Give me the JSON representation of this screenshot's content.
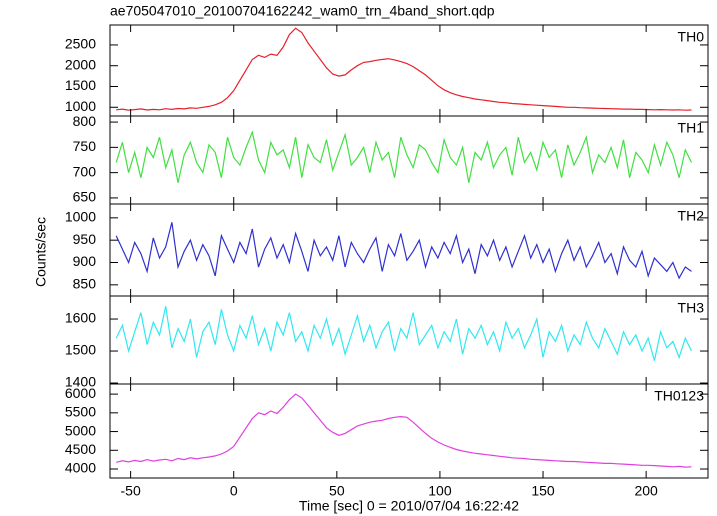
{
  "chart_data": {
    "type": "line",
    "title": "ae705047010_20100704162242_wam0_trn_4band_short.qdp",
    "xlabel": "Time [sec] 0 = 2010/07/04 16:22:42",
    "ylabel": "Counts/sec",
    "xlim": [
      -60,
      230
    ],
    "xticks": [
      -50,
      0,
      50,
      100,
      150,
      200
    ],
    "x": [
      -57,
      -54,
      -51,
      -48,
      -45,
      -42,
      -39,
      -36,
      -33,
      -30,
      -27,
      -24,
      -21,
      -18,
      -15,
      -12,
      -9,
      -6,
      -3,
      0,
      3,
      6,
      9,
      12,
      15,
      18,
      21,
      24,
      27,
      30,
      33,
      36,
      39,
      42,
      45,
      48,
      51,
      54,
      57,
      60,
      63,
      66,
      69,
      72,
      75,
      78,
      81,
      84,
      87,
      90,
      93,
      96,
      99,
      102,
      105,
      108,
      111,
      114,
      117,
      120,
      123,
      126,
      129,
      132,
      135,
      138,
      141,
      144,
      147,
      150,
      153,
      156,
      159,
      162,
      165,
      168,
      171,
      174,
      177,
      180,
      183,
      186,
      189,
      192,
      195,
      198,
      201,
      204,
      207,
      210,
      213,
      216,
      219,
      222
    ],
    "series": [
      {
        "name": "TH0",
        "color": "#e8202a",
        "ylim": [
          790,
          2980
        ],
        "yticks": [
          1000,
          1500,
          2000,
          2500
        ],
        "values": [
          940,
          955,
          930,
          945,
          960,
          935,
          950,
          940,
          965,
          950,
          970,
          960,
          985,
          975,
          1000,
          1020,
          1060,
          1120,
          1230,
          1400,
          1650,
          1900,
          2150,
          2250,
          2200,
          2280,
          2250,
          2450,
          2750,
          2900,
          2800,
          2550,
          2350,
          2150,
          1950,
          1800,
          1750,
          1780,
          1900,
          2000,
          2080,
          2100,
          2130,
          2150,
          2170,
          2140,
          2100,
          2050,
          1980,
          1880,
          1780,
          1650,
          1520,
          1420,
          1350,
          1300,
          1260,
          1230,
          1200,
          1180,
          1160,
          1140,
          1120,
          1110,
          1090,
          1080,
          1070,
          1060,
          1050,
          1040,
          1030,
          1020,
          1010,
          1000,
          1000,
          990,
          985,
          980,
          975,
          970,
          965,
          960,
          955,
          955,
          950,
          950,
          945,
          940,
          945,
          940,
          935,
          940,
          930,
          935
        ]
      },
      {
        "name": "TH1",
        "color": "#40e040",
        "ylim": [
          638,
          812
        ],
        "yticks": [
          650,
          700,
          750,
          800
        ],
        "values": [
          720,
          760,
          700,
          740,
          690,
          750,
          730,
          770,
          710,
          745,
          680,
          735,
          760,
          720,
          700,
          755,
          740,
          690,
          770,
          730,
          715,
          750,
          780,
          725,
          700,
          760,
          735,
          745,
          710,
          770,
          690,
          755,
          730,
          720,
          765,
          705,
          740,
          775,
          715,
          730,
          750,
          700,
          760,
          725,
          740,
          690,
          770,
          735,
          710,
          755,
          745,
          720,
          700,
          765,
          730,
          715,
          750,
          680,
          740,
          725,
          760,
          710,
          735,
          750,
          695,
          770,
          720,
          740,
          705,
          760,
          730,
          745,
          690,
          755,
          715,
          740,
          770,
          700,
          735,
          720,
          750,
          710,
          765,
          690,
          740,
          725,
          700,
          755,
          715,
          760,
          735,
          690,
          745,
          720
        ]
      },
      {
        "name": "TH2",
        "color": "#3030d0",
        "ylim": [
          825,
          1031
        ],
        "yticks": [
          850,
          900,
          950,
          1000
        ],
        "values": [
          960,
          930,
          900,
          945,
          920,
          880,
          955,
          910,
          935,
          990,
          890,
          925,
          950,
          905,
          940,
          915,
          870,
          960,
          930,
          900,
          945,
          920,
          975,
          890,
          930,
          955,
          910,
          940,
          900,
          965,
          925,
          880,
          950,
          915,
          935,
          905,
          960,
          890,
          945,
          920,
          900,
          930,
          955,
          880,
          940,
          915,
          965,
          905,
          925,
          950,
          890,
          935,
          910,
          945,
          920,
          960,
          900,
          930,
          875,
          940,
          915,
          950,
          905,
          935,
          890,
          925,
          960,
          910,
          940,
          900,
          930,
          880,
          920,
          950,
          905,
          935,
          890,
          915,
          945,
          900,
          920,
          875,
          935,
          905,
          890,
          925,
          870,
          910,
          895,
          880,
          900,
          865,
          890,
          880
        ]
      },
      {
        "name": "TH3",
        "color": "#30e8f0",
        "ylim": [
          1397,
          1672
        ],
        "yticks": [
          1400,
          1500,
          1600
        ],
        "values": [
          1540,
          1580,
          1500,
          1560,
          1620,
          1520,
          1590,
          1550,
          1640,
          1510,
          1570,
          1530,
          1600,
          1480,
          1560,
          1590,
          1520,
          1630,
          1550,
          1500,
          1580,
          1540,
          1610,
          1520,
          1570,
          1500,
          1590,
          1550,
          1620,
          1530,
          1560,
          1500,
          1580,
          1540,
          1600,
          1520,
          1570,
          1490,
          1550,
          1610,
          1530,
          1580,
          1510,
          1560,
          1590,
          1500,
          1570,
          1540,
          1620,
          1520,
          1550,
          1580,
          1510,
          1560,
          1530,
          1600,
          1490,
          1570,
          1540,
          1580,
          1520,
          1560,
          1500,
          1590,
          1540,
          1570,
          1510,
          1550,
          1600,
          1480,
          1560,
          1530,
          1580,
          1500,
          1550,
          1520,
          1590,
          1540,
          1510,
          1570,
          1530,
          1490,
          1560,
          1520,
          1550,
          1500,
          1540,
          1470,
          1560,
          1510,
          1530,
          1480,
          1540,
          1500
        ]
      },
      {
        "name": "TH0123",
        "color": "#e040e0",
        "ylim": [
          3760,
          6270
        ],
        "yticks": [
          4000,
          4500,
          5000,
          5500,
          6000
        ],
        "values": [
          4180,
          4220,
          4190,
          4230,
          4200,
          4250,
          4210,
          4240,
          4260,
          4220,
          4280,
          4250,
          4300,
          4270,
          4300,
          4320,
          4350,
          4400,
          4480,
          4600,
          4850,
          5100,
          5350,
          5500,
          5450,
          5550,
          5480,
          5650,
          5850,
          6000,
          5900,
          5700,
          5500,
          5300,
          5100,
          4980,
          4900,
          4950,
          5050,
          5150,
          5200,
          5250,
          5280,
          5300,
          5350,
          5380,
          5400,
          5380,
          5250,
          5100,
          4950,
          4820,
          4720,
          4640,
          4580,
          4520,
          4480,
          4450,
          4420,
          4400,
          4380,
          4360,
          4340,
          4320,
          4300,
          4290,
          4280,
          4260,
          4250,
          4240,
          4230,
          4220,
          4210,
          4200,
          4200,
          4190,
          4180,
          4170,
          4160,
          4150,
          4150,
          4140,
          4130,
          4120,
          4110,
          4100,
          4100,
          4090,
          4080,
          4070,
          4060,
          4070,
          4050,
          4060
        ]
      }
    ]
  }
}
